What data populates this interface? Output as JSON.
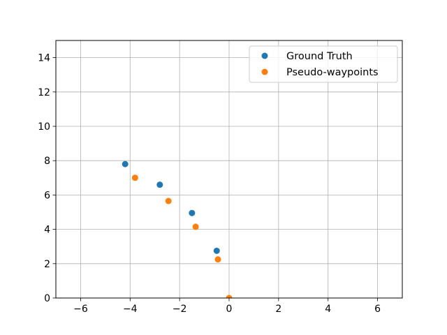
{
  "chart_data": {
    "type": "scatter",
    "title": "",
    "xlabel": "",
    "ylabel": "",
    "xlim": [
      -7,
      7
    ],
    "ylim": [
      0,
      15
    ],
    "xticks": [
      -6,
      -4,
      -2,
      0,
      2,
      4,
      6
    ],
    "yticks": [
      0,
      2,
      4,
      6,
      8,
      10,
      12,
      14
    ],
    "xtick_labels": [
      "−6",
      "−4",
      "−2",
      "0",
      "2",
      "4",
      "6"
    ],
    "ytick_labels": [
      "0",
      "2",
      "4",
      "6",
      "8",
      "10",
      "12",
      "14"
    ],
    "grid": true,
    "legend_position": "top-right",
    "series": [
      {
        "name": "Ground Truth",
        "color": "#1f77b4",
        "points": [
          {
            "x": -4.2,
            "y": 7.8
          },
          {
            "x": -2.8,
            "y": 6.6
          },
          {
            "x": -1.5,
            "y": 4.95
          },
          {
            "x": -0.5,
            "y": 2.75
          }
        ]
      },
      {
        "name": "Pseudo-waypoints",
        "color": "#ff7f0e",
        "points": [
          {
            "x": -3.8,
            "y": 7.0
          },
          {
            "x": -2.45,
            "y": 5.65
          },
          {
            "x": -1.35,
            "y": 4.15
          },
          {
            "x": -0.45,
            "y": 2.25
          },
          {
            "x": 0.0,
            "y": 0.0
          }
        ]
      }
    ]
  }
}
